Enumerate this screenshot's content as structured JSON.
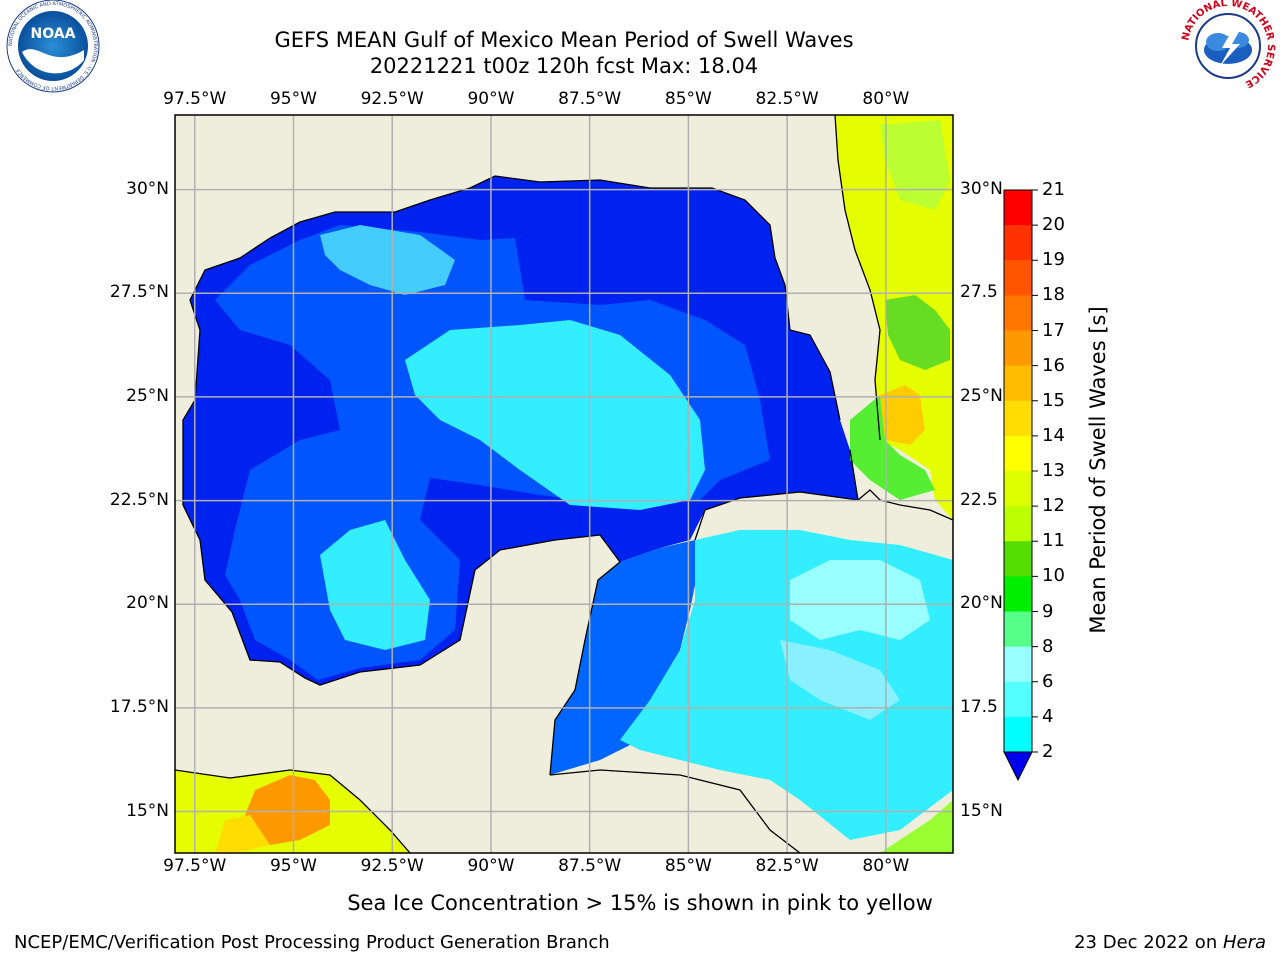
{
  "header": {
    "title_line1": "GEFS MEAN Gulf of Mexico Mean Period of Swell Waves",
    "title_line2": "20221221 t00z 120h fcst   Max: 18.04"
  },
  "map": {
    "lon_ticks": [
      "97.5°W",
      "95°W",
      "92.5°W",
      "90°W",
      "87.5°W",
      "85°W",
      "82.5°W",
      "80°W"
    ],
    "lon_values": [
      -97.5,
      -95,
      -92.5,
      -90,
      -87.5,
      -85,
      -82.5,
      -80
    ],
    "lat_ticks": [
      "30°N",
      "27.5°N",
      "25°N",
      "22.5°N",
      "20°N",
      "17.5°N",
      "15°N"
    ],
    "lat_ticks_right": [
      "30°N",
      "27.5",
      "25°N",
      "22.5",
      "20°N",
      "17.5",
      "15°N"
    ],
    "lat_values": [
      30,
      27.5,
      25,
      22.5,
      20,
      17.5,
      15
    ],
    "extent": {
      "lon_min": -98,
      "lon_max": -78.3,
      "lat_min": 14,
      "lat_max": 31.8
    },
    "land_color": "#efeedc",
    "grid_color": "#b0b0b0"
  },
  "colorbar": {
    "title": "Mean Period of Swell Waves [s]",
    "labels": [
      "21",
      "20",
      "19",
      "18",
      "17",
      "16",
      "15",
      "14",
      "13",
      "12",
      "11",
      "10",
      "9",
      "8",
      "6",
      "4",
      "2"
    ],
    "colors": [
      "#ff0000",
      "#ff3300",
      "#ff5500",
      "#ff7700",
      "#ff9900",
      "#ffbb00",
      "#ffdd00",
      "#ffff00",
      "#ddff00",
      "#bbff00",
      "#55dd00",
      "#00ee00",
      "#55ff88",
      "#99ffff",
      "#55ffff",
      "#00ffff",
      "#00e5ff",
      "#0077ff"
    ],
    "under_color": "#0000ee"
  },
  "legend_note": "Sea Ice Concentration > 15% is shown in pink to yellow",
  "footer": {
    "credit": "NCEP/EMC/Verification Post Processing Product Generation Branch",
    "date": "23 Dec 2022 on ",
    "machine": "Hera"
  },
  "logos": {
    "left": "NOAA",
    "left_ring": "NATIONAL OCEANIC AND ATMOSPHERIC ADMINISTRATION · U.S. DEPARTMENT OF COMMERCE",
    "right_ring": "NATIONAL WEATHER SERVICE"
  }
}
